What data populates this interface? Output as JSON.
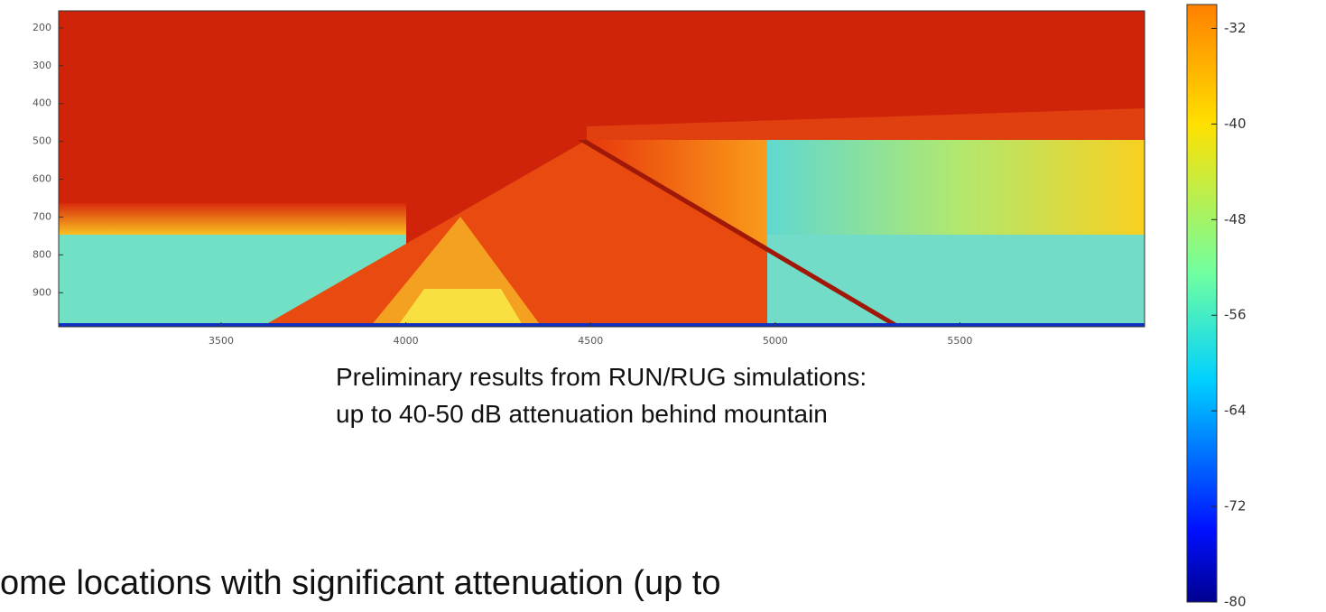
{
  "chart_data": {
    "type": "heatmap",
    "xlim": [
      3060,
      6000
    ],
    "xticks": [
      3500,
      4000,
      4500,
      5000,
      5500
    ],
    "ylim": [
      990,
      155
    ],
    "yticks": [
      200,
      300,
      400,
      500,
      600,
      700,
      800,
      900
    ],
    "colorbar": {
      "lim": [
        -80,
        -30
      ],
      "ticks": [
        -32,
        -40,
        -48,
        -56,
        -64,
        -72,
        -80
      ]
    },
    "caption": [
      "Preliminary results from RUN/RUG simulations:",
      "up to 40-50 dB attenuation behind mountain"
    ]
  },
  "body_text": "ome locations with significant attenuation (up to"
}
